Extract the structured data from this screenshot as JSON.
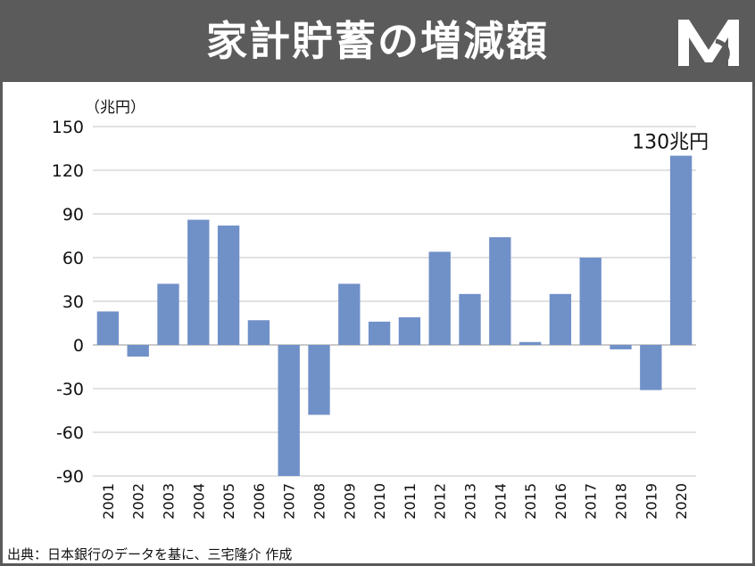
{
  "title": "家計貯蓄の増減額",
  "logo": {
    "icon": "mr-logo-icon",
    "color": "#ffffff"
  },
  "source": "出典：日本銀行のデータを基に、三宅隆介 作成",
  "colors": {
    "bar": "#7090c8",
    "header": "#5b5b5b",
    "grid": "#d9d9d9"
  },
  "chart_data": {
    "type": "bar",
    "ylabel": "（兆円）",
    "ylim": [
      -90,
      150
    ],
    "yticks": [
      150,
      120,
      90,
      60,
      30,
      0,
      -30,
      -60,
      -90
    ],
    "grid": true,
    "categories": [
      "2001",
      "2002",
      "2003",
      "2004",
      "2005",
      "2006",
      "2007",
      "2008",
      "2009",
      "2010",
      "2011",
      "2012",
      "2013",
      "2014",
      "2015",
      "2016",
      "2017",
      "2018",
      "2019",
      "2020"
    ],
    "values": [
      23,
      -8,
      42,
      86,
      82,
      17,
      -95,
      -48,
      42,
      16,
      19,
      64,
      35,
      74,
      2,
      35,
      60,
      -3,
      -31,
      130
    ],
    "annotation": {
      "category": "2020",
      "text": "130兆円"
    }
  }
}
